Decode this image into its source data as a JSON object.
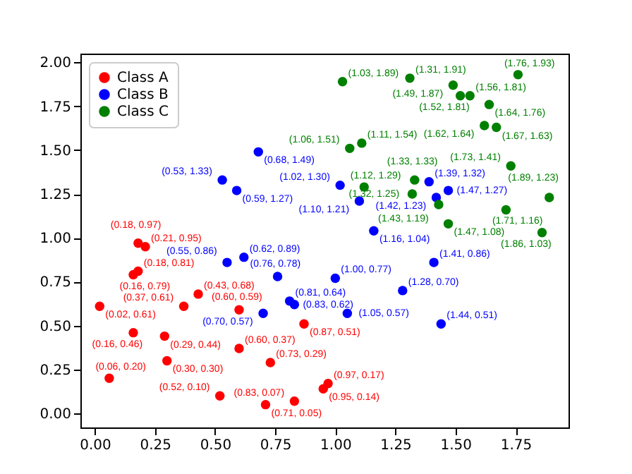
{
  "chart_data": {
    "type": "scatter",
    "marker": "circle",
    "legend": "top left",
    "grid": false,
    "xlim": [
      -0.06,
      1.97
    ],
    "ylim": [
      -0.08,
      2.05
    ],
    "xticks": [
      {
        "value": 0,
        "label": "0.00"
      },
      {
        "value": 0.25,
        "label": "0.25"
      },
      {
        "value": 0.5,
        "label": "0.50"
      },
      {
        "value": 0.75,
        "label": "0.75"
      },
      {
        "value": 1,
        "label": "1.00"
      },
      {
        "value": 1.25,
        "label": "1.25"
      },
      {
        "value": 1.5,
        "label": "1.50"
      },
      {
        "value": 1.75,
        "label": "1.75"
      }
    ],
    "yticks": [
      {
        "value": 0,
        "label": "0.00"
      },
      {
        "value": 0.25,
        "label": "0.25"
      },
      {
        "value": 0.5,
        "label": "0.50"
      },
      {
        "value": 0.75,
        "label": "0.75"
      },
      {
        "value": 1,
        "label": "1.00"
      },
      {
        "value": 1.25,
        "label": "1.25"
      },
      {
        "value": 1.5,
        "label": "1.50"
      },
      {
        "value": 1.75,
        "label": "1.75"
      },
      {
        "value": 2,
        "label": "2.00"
      }
    ],
    "series": [
      {
        "name": "Class A",
        "color": "#ff0000",
        "x": [
          0.18,
          0.21,
          0.18,
          0.16,
          0.02,
          0.43,
          0.37,
          0.16,
          0.29,
          0.3,
          0.06,
          0.6,
          0.6,
          0.87,
          0.73,
          0.52,
          0.71,
          0.83,
          0.95,
          0.97
        ],
        "values": [
          0.97,
          0.95,
          0.81,
          0.79,
          0.61,
          0.68,
          0.61,
          0.46,
          0.44,
          0.3,
          0.2,
          0.59,
          0.37,
          0.51,
          0.29,
          0.1,
          0.05,
          0.07,
          0.14,
          0.17
        ],
        "value_labels": [
          "(0.18, 0.97)",
          "(0.21, 0.95)",
          "(0.18, 0.81)",
          "(0.16, 0.79)",
          "(0.02, 0.61)",
          "(0.43, 0.68)",
          "(0.37, 0.61)",
          "(0.16, 0.46)",
          "(0.29, 0.44)",
          "(0.30, 0.30)",
          "(0.06, 0.20)",
          "(0.60, 0.59)",
          "(0.60, 0.37)",
          "(0.87, 0.51)",
          "(0.73, 0.29)",
          "(0.52, 0.10)",
          "(0.71, 0.05)",
          "(0.83, 0.07)",
          "(0.95, 0.14)",
          "(0.97, 0.17)"
        ]
      },
      {
        "name": "Class B",
        "color": "#0000ff",
        "x": [
          0.68,
          0.53,
          0.59,
          0.62,
          0.55,
          0.76,
          1.0,
          0.81,
          0.83,
          0.7,
          1.05,
          1.16,
          1.28,
          1.41,
          1.44,
          1.02,
          1.1,
          1.39,
          1.42,
          1.47
        ],
        "values": [
          1.49,
          1.33,
          1.27,
          0.89,
          0.86,
          0.78,
          0.77,
          0.64,
          0.62,
          0.57,
          0.57,
          1.04,
          0.7,
          0.86,
          0.51,
          1.3,
          1.21,
          1.32,
          1.23,
          1.27
        ],
        "value_labels": [
          "(0.68, 1.49)",
          "(0.53, 1.33)",
          "(0.59, 1.27)",
          "(0.62, 0.89)",
          "(0.55, 0.86)",
          "(0.76, 0.78)",
          "(1.00, 0.77)",
          "(0.81, 0.64)",
          "(0.83, 0.62)",
          "(0.70, 0.57)",
          "(1.05, 0.57)",
          "(1.16, 1.04)",
          "(1.28, 0.70)",
          "(1.41, 0.86)",
          "(1.44, 0.51)",
          "(1.02, 1.30)",
          "(1.10, 1.21)",
          "(1.39, 1.32)",
          "(1.42, 1.23)",
          "(1.47, 1.27)"
        ]
      },
      {
        "name": "Class C",
        "color": "#008000",
        "x": [
          1.03,
          1.31,
          1.49,
          1.76,
          1.52,
          1.56,
          1.64,
          1.62,
          1.67,
          1.73,
          1.89,
          1.71,
          1.47,
          1.86,
          1.11,
          1.06,
          1.12,
          1.33,
          1.32,
          1.43
        ],
        "values": [
          1.89,
          1.91,
          1.87,
          1.93,
          1.81,
          1.81,
          1.76,
          1.64,
          1.63,
          1.41,
          1.23,
          1.16,
          1.08,
          1.03,
          1.54,
          1.51,
          1.29,
          1.33,
          1.25,
          1.19
        ],
        "value_labels": [
          "(1.03, 1.89)",
          "(1.31, 1.91)",
          "(1.49, 1.87)",
          "(1.76, 1.93)",
          "(1.52, 1.81)",
          "(1.56, 1.81)",
          "(1.64, 1.76)",
          "(1.62, 1.64)",
          "(1.67, 1.63)",
          "(1.73, 1.41)",
          "(1.89, 1.23)",
          "(1.71, 1.16)",
          "(1.47, 1.08)",
          "(1.86, 1.03)",
          "(1.11, 1.54)",
          "(1.06, 1.51)",
          "(1.12, 1.29)",
          "(1.33, 1.33)",
          "(1.32, 1.25)",
          "(1.43, 1.19)"
        ]
      }
    ]
  }
}
